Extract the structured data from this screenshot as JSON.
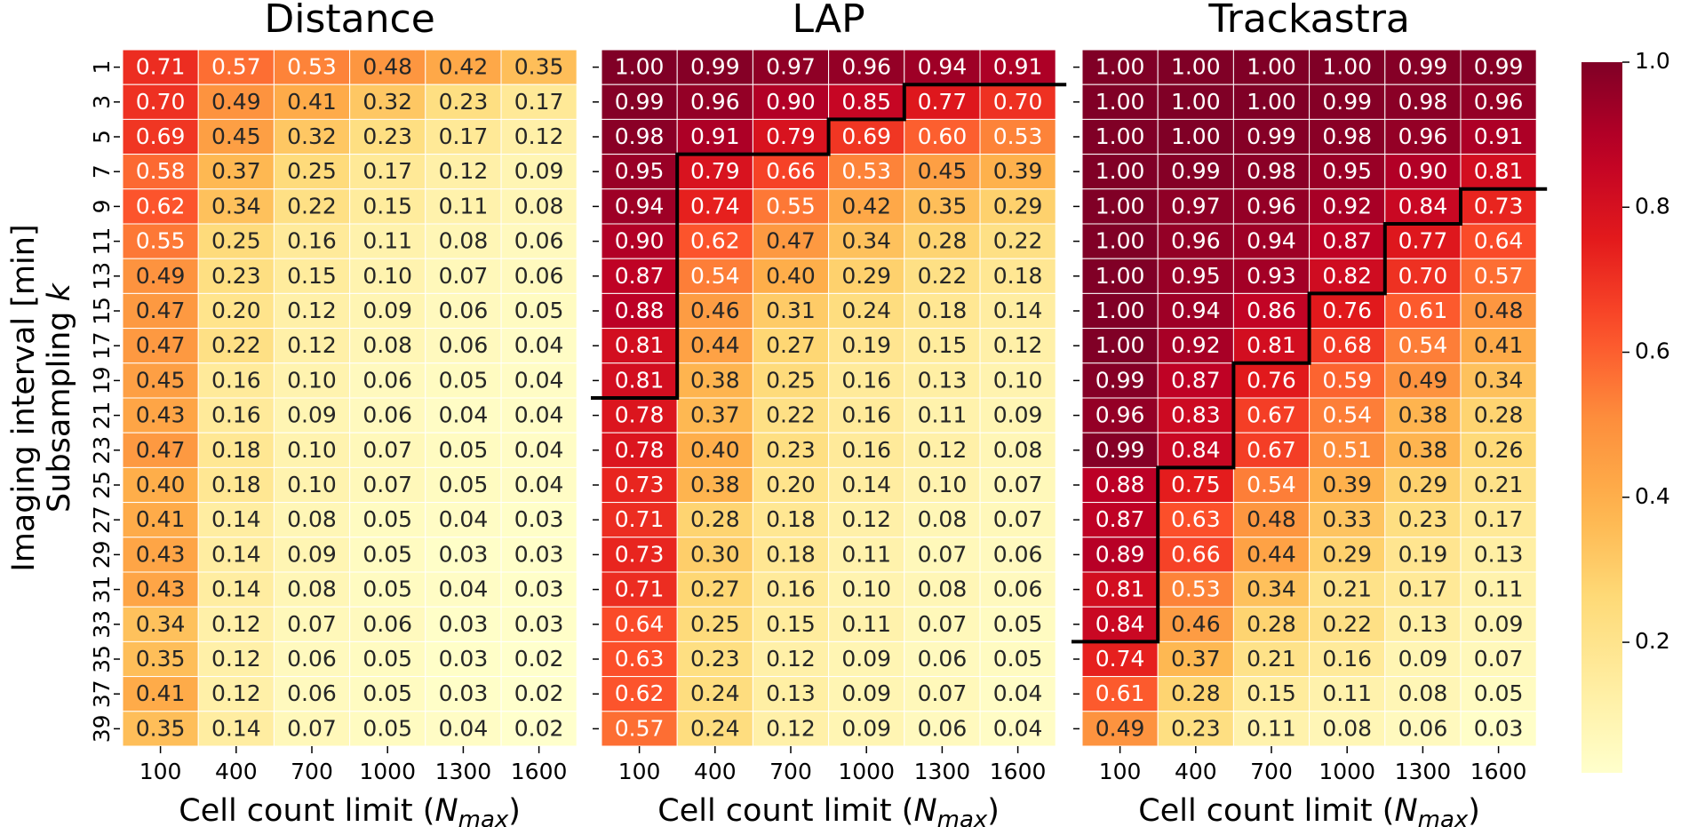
{
  "chart_data": {
    "type": "heatmap",
    "ylabel_line1": "Imaging interval [min]",
    "ylabel_line2": "Subsampling",
    "ylabel_var": "k",
    "xlabel_text": "Cell count limit (",
    "xlabel_var": "N",
    "xlabel_sub": "max",
    "xlabel_close": ")",
    "x_categories": [
      "100",
      "400",
      "700",
      "1000",
      "1300",
      "1600"
    ],
    "y_categories": [
      "1",
      "3",
      "5",
      "7",
      "9",
      "11",
      "13",
      "15",
      "17",
      "19",
      "21",
      "23",
      "25",
      "27",
      "29",
      "31",
      "33",
      "35",
      "37",
      "39"
    ],
    "colorbar": {
      "ticks": [
        "0.2",
        "0.4",
        "0.6",
        "0.8",
        "1.0"
      ],
      "tick_values": [
        0.2,
        0.4,
        0.6,
        0.8,
        1.0
      ],
      "range": [
        0.02,
        1.0
      ],
      "colormap": "YlOrRd"
    },
    "panels": [
      {
        "title": "Distance",
        "values": [
          [
            0.71,
            0.57,
            0.53,
            0.48,
            0.42,
            0.35
          ],
          [
            0.7,
            0.49,
            0.41,
            0.32,
            0.23,
            0.17
          ],
          [
            0.69,
            0.45,
            0.32,
            0.23,
            0.17,
            0.12
          ],
          [
            0.58,
            0.37,
            0.25,
            0.17,
            0.12,
            0.09
          ],
          [
            0.62,
            0.34,
            0.22,
            0.15,
            0.11,
            0.08
          ],
          [
            0.55,
            0.25,
            0.16,
            0.11,
            0.08,
            0.06
          ],
          [
            0.49,
            0.23,
            0.15,
            0.1,
            0.07,
            0.06
          ],
          [
            0.47,
            0.2,
            0.12,
            0.09,
            0.06,
            0.05
          ],
          [
            0.47,
            0.22,
            0.12,
            0.08,
            0.06,
            0.04
          ],
          [
            0.45,
            0.16,
            0.1,
            0.06,
            0.05,
            0.04
          ],
          [
            0.43,
            0.16,
            0.09,
            0.06,
            0.04,
            0.04
          ],
          [
            0.47,
            0.18,
            0.1,
            0.07,
            0.05,
            0.04
          ],
          [
            0.4,
            0.18,
            0.1,
            0.07,
            0.05,
            0.04
          ],
          [
            0.41,
            0.14,
            0.08,
            0.05,
            0.04,
            0.03
          ],
          [
            0.43,
            0.14,
            0.09,
            0.05,
            0.03,
            0.03
          ],
          [
            0.43,
            0.14,
            0.08,
            0.05,
            0.04,
            0.03
          ],
          [
            0.34,
            0.12,
            0.07,
            0.06,
            0.03,
            0.03
          ],
          [
            0.35,
            0.12,
            0.06,
            0.05,
            0.03,
            0.02
          ],
          [
            0.41,
            0.12,
            0.06,
            0.05,
            0.03,
            0.02
          ],
          [
            0.35,
            0.14,
            0.07,
            0.05,
            0.04,
            0.02
          ]
        ],
        "boundary": []
      },
      {
        "title": "LAP",
        "values": [
          [
            1.0,
            0.99,
            0.97,
            0.96,
            0.94,
            0.91
          ],
          [
            0.99,
            0.96,
            0.9,
            0.85,
            0.77,
            0.7
          ],
          [
            0.98,
            0.91,
            0.79,
            0.69,
            0.6,
            0.53
          ],
          [
            0.95,
            0.79,
            0.66,
            0.53,
            0.45,
            0.39
          ],
          [
            0.94,
            0.74,
            0.55,
            0.42,
            0.35,
            0.29
          ],
          [
            0.9,
            0.62,
            0.47,
            0.34,
            0.28,
            0.22
          ],
          [
            0.87,
            0.54,
            0.4,
            0.29,
            0.22,
            0.18
          ],
          [
            0.88,
            0.46,
            0.31,
            0.24,
            0.18,
            0.14
          ],
          [
            0.81,
            0.44,
            0.27,
            0.19,
            0.15,
            0.12
          ],
          [
            0.81,
            0.38,
            0.25,
            0.16,
            0.13,
            0.1
          ],
          [
            0.78,
            0.37,
            0.22,
            0.16,
            0.11,
            0.09
          ],
          [
            0.78,
            0.4,
            0.23,
            0.16,
            0.12,
            0.08
          ],
          [
            0.73,
            0.38,
            0.2,
            0.14,
            0.1,
            0.07
          ],
          [
            0.71,
            0.28,
            0.18,
            0.12,
            0.08,
            0.07
          ],
          [
            0.73,
            0.3,
            0.18,
            0.11,
            0.07,
            0.06
          ],
          [
            0.71,
            0.27,
            0.16,
            0.1,
            0.08,
            0.06
          ],
          [
            0.64,
            0.25,
            0.15,
            0.11,
            0.07,
            0.05
          ],
          [
            0.63,
            0.23,
            0.12,
            0.09,
            0.06,
            0.05
          ],
          [
            0.62,
            0.24,
            0.13,
            0.09,
            0.07,
            0.04
          ],
          [
            0.57,
            0.24,
            0.12,
            0.09,
            0.06,
            0.04
          ]
        ],
        "boundary": [
          10,
          3,
          3,
          2,
          1,
          1
        ]
      },
      {
        "title": "Trackastra",
        "values": [
          [
            1.0,
            1.0,
            1.0,
            1.0,
            0.99,
            0.99
          ],
          [
            1.0,
            1.0,
            1.0,
            0.99,
            0.98,
            0.96
          ],
          [
            1.0,
            1.0,
            0.99,
            0.98,
            0.96,
            0.91
          ],
          [
            1.0,
            0.99,
            0.98,
            0.95,
            0.9,
            0.81
          ],
          [
            1.0,
            0.97,
            0.96,
            0.92,
            0.84,
            0.73
          ],
          [
            1.0,
            0.96,
            0.94,
            0.87,
            0.77,
            0.64
          ],
          [
            1.0,
            0.95,
            0.93,
            0.82,
            0.7,
            0.57
          ],
          [
            1.0,
            0.94,
            0.86,
            0.76,
            0.61,
            0.48
          ],
          [
            1.0,
            0.92,
            0.81,
            0.68,
            0.54,
            0.41
          ],
          [
            0.99,
            0.87,
            0.76,
            0.59,
            0.49,
            0.34
          ],
          [
            0.96,
            0.83,
            0.67,
            0.54,
            0.38,
            0.28
          ],
          [
            0.99,
            0.84,
            0.67,
            0.51,
            0.38,
            0.26
          ],
          [
            0.88,
            0.75,
            0.54,
            0.39,
            0.29,
            0.21
          ],
          [
            0.87,
            0.63,
            0.48,
            0.33,
            0.23,
            0.17
          ],
          [
            0.89,
            0.66,
            0.44,
            0.29,
            0.19,
            0.13
          ],
          [
            0.81,
            0.53,
            0.34,
            0.21,
            0.17,
            0.11
          ],
          [
            0.84,
            0.46,
            0.28,
            0.22,
            0.13,
            0.09
          ],
          [
            0.74,
            0.37,
            0.21,
            0.16,
            0.09,
            0.07
          ],
          [
            0.61,
            0.28,
            0.15,
            0.11,
            0.08,
            0.05
          ],
          [
            0.49,
            0.23,
            0.11,
            0.08,
            0.06,
            0.03
          ]
        ],
        "boundary": [
          17,
          12,
          9,
          7,
          5,
          4
        ]
      }
    ]
  }
}
